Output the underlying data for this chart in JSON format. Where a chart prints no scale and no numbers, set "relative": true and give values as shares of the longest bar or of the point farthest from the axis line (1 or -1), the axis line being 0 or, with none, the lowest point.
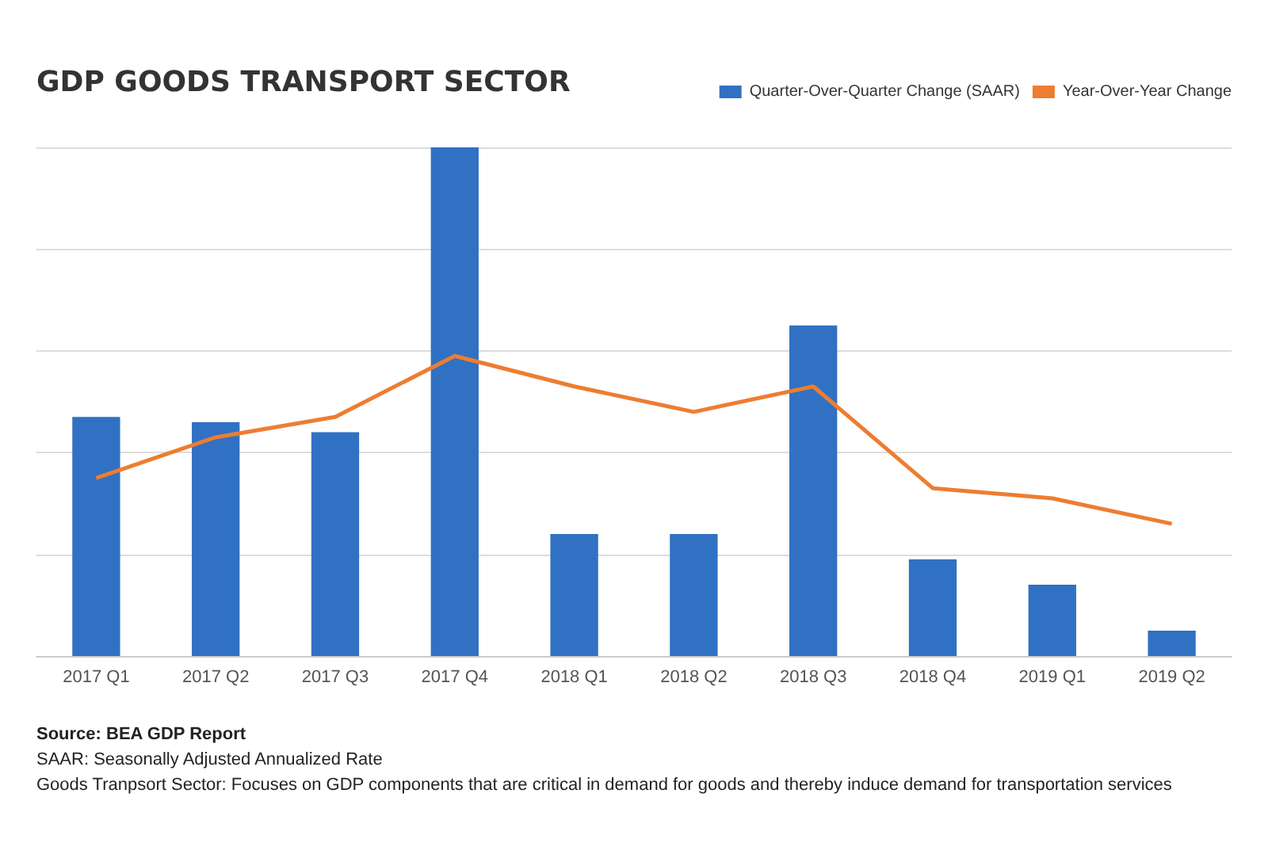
{
  "chart_data": {
    "type": "bar",
    "title": "GDP GOODS TRANSPORT SECTOR",
    "relative": true,
    "categories": [
      "2017 Q1",
      "2017 Q2",
      "2017 Q3",
      "2017 Q4",
      "2018 Q1",
      "2018 Q2",
      "2018 Q3",
      "2018 Q4",
      "2019 Q1",
      "2019 Q2"
    ],
    "series": [
      {
        "name": "Quarter-Over-Quarter Change (SAAR)",
        "color": "#3071c3",
        "values": [
          0.47,
          0.46,
          0.44,
          1,
          0.24,
          0.24,
          0.65,
          0.19,
          0.14,
          0.05
        ]
      },
      {
        "name": "Year-Over-Year Change",
        "type": "line",
        "color": "#ed7d31",
        "values": [
          0.35,
          0.43,
          0.47,
          0.59,
          0.53,
          0.48,
          0.53,
          0.33,
          0.31,
          0.26
        ]
      }
    ],
    "grid": "y",
    "legend": "top right",
    "marker": "none",
    "annotations": [
      "Source: BEA GDP Report",
      "SAAR: Seasonally Adjusted Annualized Rate",
      "Goods Tranpsort Sector: Focuses on GDP components that are critical in demand for goods and thereby induce demand for transportation services"
    ]
  }
}
